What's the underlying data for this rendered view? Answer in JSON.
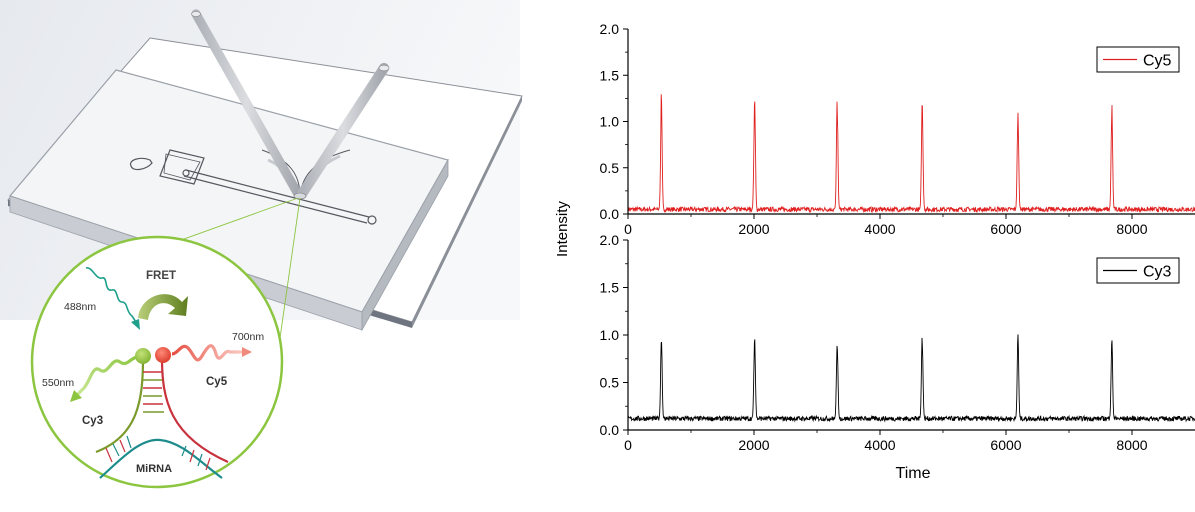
{
  "illustration": {
    "labels": {
      "fret": "FRET",
      "excitation": "488nm",
      "donor_emission": "550nm",
      "acceptor_emission": "700nm",
      "donor": "Cy3",
      "acceptor": "Cy5",
      "target": "MiRNA"
    },
    "colors": {
      "circle_border": "#8cc640",
      "donor": "#8cc640",
      "acceptor": "#e64a3c",
      "probe_green": "#7a9a2a",
      "probe_red": "#c8323c",
      "mirna": "#1e8c8c",
      "fret_arrow": "#6f8f2a",
      "excitation": "#1fa08c"
    }
  },
  "chart_data": {
    "type": "line",
    "shared_ylabel": "Intensity",
    "xlabel": "Time",
    "xlim": [
      0,
      9000
    ],
    "xticks": [
      0,
      2000,
      4000,
      6000,
      8000
    ],
    "yticks": [
      0.0,
      0.5,
      1.0,
      1.5,
      2.0
    ],
    "ylim": [
      0,
      2.0
    ],
    "panels": [
      {
        "legend": "Cy5",
        "legend_position": "top-right",
        "color": "#e02020",
        "baseline": 0.05,
        "peaks": [
          {
            "x": 530,
            "y": 1.33
          },
          {
            "x": 2010,
            "y": 1.28
          },
          {
            "x": 3320,
            "y": 1.25
          },
          {
            "x": 4670,
            "y": 1.33
          },
          {
            "x": 6190,
            "y": 1.2
          },
          {
            "x": 7680,
            "y": 1.22
          }
        ]
      },
      {
        "legend": "Cy3",
        "legend_position": "top-right",
        "color": "#000000",
        "baseline": 0.12,
        "peaks": [
          {
            "x": 530,
            "y": 1.04
          },
          {
            "x": 2010,
            "y": 1.04
          },
          {
            "x": 3320,
            "y": 1.0
          },
          {
            "x": 4670,
            "y": 1.04
          },
          {
            "x": 6190,
            "y": 1.04
          },
          {
            "x": 7680,
            "y": 1.04
          }
        ]
      }
    ]
  }
}
